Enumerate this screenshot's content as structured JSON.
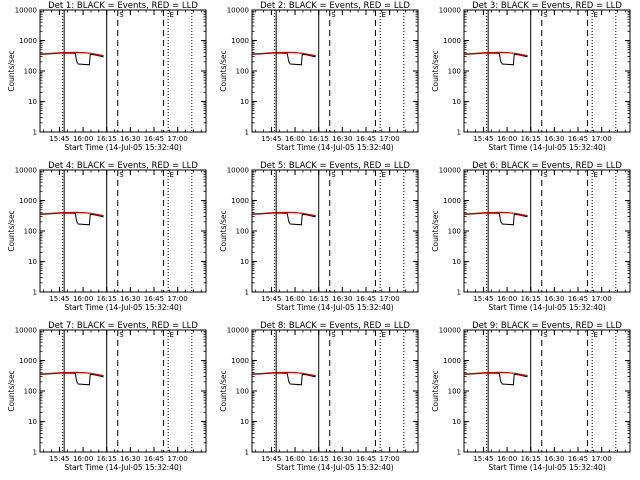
{
  "chart_data": {
    "type": "line",
    "panel_count": 9,
    "grid_columns": 3,
    "title_template": "Det {n}: BLACK = Events, RED = LLD",
    "xlabel": "Start Time (14-Jul-05 15:32:40)",
    "ylabel": "Counts/sec",
    "x_range": [
      "15:32:40",
      "17:18:00"
    ],
    "x_ticks": [
      "15:45",
      "16:00",
      "16:15",
      "16:30",
      "16:45",
      "17:00"
    ],
    "y_scale": "log",
    "y_range": [
      1,
      10000
    ],
    "y_ticks": [
      "1",
      "10",
      "100",
      "1000",
      "10000"
    ],
    "markers": [
      {
        "time": "15:47:00",
        "style": "dotted",
        "label": ""
      },
      {
        "time": "15:48:00",
        "style": "solid",
        "label": ""
      },
      {
        "time": "16:15:00",
        "style": "solid",
        "label": ""
      },
      {
        "time": "16:22:00",
        "style": "dashed",
        "label": "S"
      },
      {
        "time": "16:51:00",
        "style": "dashed",
        "label": ""
      },
      {
        "time": "16:54:00",
        "style": "dotted",
        "label": "E"
      },
      {
        "time": "17:09:00",
        "style": "dotted",
        "label": ""
      }
    ],
    "series": [
      {
        "name": "BLACK = Events",
        "color": "#000000",
        "points": [
          [
            "15:33:00",
            350
          ],
          [
            "15:40:00",
            370
          ],
          [
            "15:47:00",
            390
          ],
          [
            "15:55:00",
            380
          ],
          [
            "15:56:00",
            200
          ],
          [
            "15:57:00",
            170
          ],
          [
            "16:04:00",
            160
          ],
          [
            "16:04:30",
            350
          ],
          [
            "16:07:00",
            340
          ],
          [
            "16:13:00",
            290
          ]
        ]
      },
      {
        "name": "RED = LLD",
        "color": "#cc0000",
        "points": [
          [
            "15:33:00",
            360
          ],
          [
            "15:40:00",
            380
          ],
          [
            "15:47:00",
            400
          ],
          [
            "15:55:00",
            410
          ],
          [
            "16:00:00",
            400
          ],
          [
            "16:05:00",
            380
          ],
          [
            "16:10:00",
            340
          ],
          [
            "16:13:00",
            320
          ]
        ]
      }
    ],
    "panels": [
      {
        "det": "1"
      },
      {
        "det": "2"
      },
      {
        "det": "3"
      },
      {
        "det": "4"
      },
      {
        "det": "5"
      },
      {
        "det": "6"
      },
      {
        "det": "7"
      },
      {
        "det": "8"
      },
      {
        "det": "9"
      }
    ]
  }
}
